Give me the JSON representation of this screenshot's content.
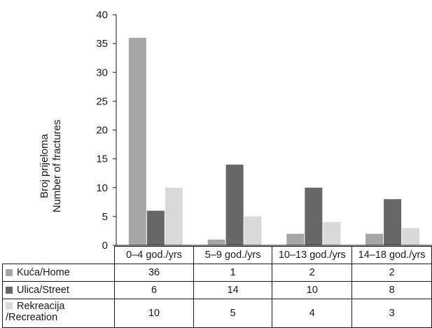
{
  "chart_data": {
    "type": "bar",
    "categories": [
      "0–4 god./yrs",
      "5–9 god./yrs",
      "10–13 god./yrs",
      "14–18 god./yrs"
    ],
    "series": [
      {
        "name": "Kuća/Home",
        "values": [
          36,
          1,
          2,
          2
        ],
        "color": "#a6a6a6"
      },
      {
        "name": "Ulica/Street",
        "values": [
          6,
          14,
          10,
          8
        ],
        "color": "#676767"
      },
      {
        "name": "Rekreacija /Recreation",
        "name_lines": [
          "Rekreacija",
          "/Recreation"
        ],
        "values": [
          10,
          5,
          4,
          3
        ],
        "color": "#d9d9d9"
      }
    ],
    "ylabel_lines": [
      "Broj prijeloma",
      "Number of fractures"
    ],
    "ylim": [
      0,
      40
    ],
    "yticks": [
      "0",
      "5",
      "10",
      "15",
      "20",
      "25",
      "30",
      "35",
      "40"
    ],
    "grid": false,
    "legend": "data table below chart"
  }
}
